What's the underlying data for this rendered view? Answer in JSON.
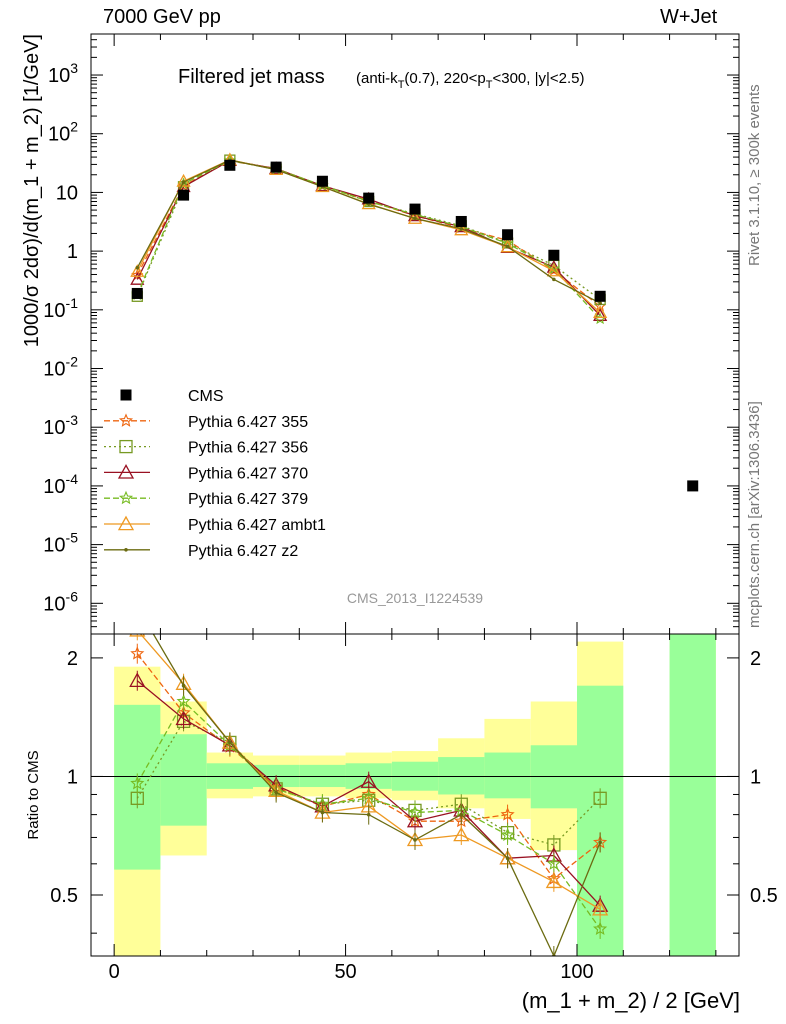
{
  "header": {
    "left": "7000 GeV pp",
    "right": "W+Jet"
  },
  "side_labels": {
    "rivet": "Rivet 3.1.10, ≥ 300k events",
    "mcplots": "mcplots.cern.ch [arXiv:1306.3436]"
  },
  "chart_data": {
    "type": "line",
    "title_main": "Filtered jet mass",
    "title_sub_parts": [
      "(anti-k",
      "T",
      "(0.7), 220<p",
      "T",
      "<300, |y|<2.5)"
    ],
    "watermark": "CMS_2013_I1224539",
    "xlabel": "(m_1 + m_2) / 2 [GeV]",
    "ylabel": "1000/σ 2dσ)/d(m_1 + m_2) [1/GeV]",
    "ratio_ylabel": "Ratio to CMS",
    "xlim": [
      -5,
      135
    ],
    "ylim": [
      3e-07,
      5000
    ],
    "yscale": "log",
    "ratio_ylim": [
      0.35,
      2.3
    ],
    "x_ticks": [
      "0",
      "50",
      "100"
    ],
    "y_ticks": [
      "10^-6",
      "10^-5",
      "10^-4",
      "10^-3",
      "10^-2",
      "10^-1",
      "1",
      "10",
      "10^2",
      "10^3"
    ],
    "ratio_ticks": [
      "0.5",
      "1",
      "2"
    ],
    "legend_placement": "lower-left",
    "data": {
      "name": "CMS",
      "x": [
        5,
        15,
        25,
        35,
        45,
        55,
        65,
        75,
        85,
        95,
        105,
        125
      ],
      "y": [
        0.19,
        9.0,
        29,
        27,
        15.5,
        8.0,
        5.2,
        3.2,
        1.9,
        0.85,
        0.17,
        0.0001
      ]
    },
    "bands": [
      {
        "x0": 0,
        "x1": 10,
        "inner": [
          0.58,
          1.52
        ],
        "outer": [
          0.3,
          1.9
        ]
      },
      {
        "x0": 10,
        "x1": 20,
        "inner": [
          0.75,
          1.28
        ],
        "outer": [
          0.63,
          1.55
        ]
      },
      {
        "x0": 20,
        "x1": 30,
        "inner": [
          0.93,
          1.08
        ],
        "outer": [
          0.88,
          1.15
        ]
      },
      {
        "x0": 30,
        "x1": 40,
        "inner": [
          0.94,
          1.07
        ],
        "outer": [
          0.89,
          1.13
        ]
      },
      {
        "x0": 40,
        "x1": 50,
        "inner": [
          0.94,
          1.07
        ],
        "outer": [
          0.89,
          1.13
        ]
      },
      {
        "x0": 50,
        "x1": 60,
        "inner": [
          0.93,
          1.08
        ],
        "outer": [
          0.88,
          1.15
        ]
      },
      {
        "x0": 60,
        "x1": 70,
        "inner": [
          0.92,
          1.09
        ],
        "outer": [
          0.87,
          1.16
        ]
      },
      {
        "x0": 70,
        "x1": 80,
        "inner": [
          0.9,
          1.12
        ],
        "outer": [
          0.83,
          1.25
        ]
      },
      {
        "x0": 80,
        "x1": 90,
        "inner": [
          0.88,
          1.15
        ],
        "outer": [
          0.78,
          1.4
        ]
      },
      {
        "x0": 90,
        "x1": 100,
        "inner": [
          0.83,
          1.2
        ],
        "outer": [
          0.65,
          1.55
        ]
      },
      {
        "x0": 100,
        "x1": 110,
        "inner": [
          0.25,
          1.7
        ],
        "outer": [
          0.25,
          2.2
        ]
      },
      {
        "x0": 120,
        "x1": 130,
        "inner": [
          0.25,
          3.0
        ],
        "outer": [
          0.25,
          3.0
        ]
      }
    ],
    "series": [
      {
        "name": "Pythia 6.427 355",
        "color": "#ee6611",
        "dash": "6,3",
        "marker": "star",
        "x": [
          5,
          15,
          25,
          35,
          45,
          55,
          65,
          75,
          85,
          95,
          105
        ],
        "y": [
          0.39,
          13.0,
          34.5,
          25.5,
          13.0,
          7.2,
          4.0,
          2.5,
          1.52,
          0.47,
          0.115
        ],
        "ratio": [
          2.05,
          1.45,
          1.19,
          0.94,
          0.84,
          0.9,
          0.77,
          0.77,
          0.8,
          0.55,
          0.68
        ]
      },
      {
        "name": "Pythia 6.427 356",
        "color": "#779922",
        "dash": "2,3",
        "marker": "square",
        "x": [
          5,
          15,
          25,
          35,
          45,
          55,
          65,
          75,
          85,
          95,
          105
        ],
        "y": [
          0.17,
          12.5,
          35.5,
          25.0,
          13.0,
          7.0,
          4.3,
          2.7,
          1.38,
          0.57,
          0.15
        ],
        "ratio": [
          0.88,
          1.38,
          1.22,
          0.93,
          0.85,
          0.87,
          0.82,
          0.85,
          0.72,
          0.67,
          0.88
        ]
      },
      {
        "name": "Pythia 6.427 370",
        "color": "#991122",
        "dash": "",
        "marker": "triangle",
        "x": [
          5,
          15,
          25,
          35,
          45,
          55,
          65,
          75,
          85,
          95,
          105
        ],
        "y": [
          0.33,
          12.5,
          35.0,
          25.5,
          13.0,
          7.7,
          4.0,
          2.6,
          1.15,
          0.53,
          0.08
        ],
        "ratio": [
          1.75,
          1.4,
          1.2,
          0.95,
          0.84,
          0.97,
          0.77,
          0.82,
          0.62,
          0.63,
          0.47
        ]
      },
      {
        "name": "Pythia 6.427 379",
        "color": "#77bb22",
        "dash": "6,3",
        "marker": "star",
        "x": [
          5,
          15,
          25,
          35,
          45,
          55,
          65,
          75,
          85,
          95,
          105
        ],
        "y": [
          0.18,
          14.0,
          35.0,
          25.0,
          13.2,
          7.0,
          4.2,
          2.6,
          1.35,
          0.5,
          0.07
        ],
        "ratio": [
          0.96,
          1.55,
          1.2,
          0.93,
          0.85,
          0.88,
          0.81,
          0.82,
          0.71,
          0.6,
          0.41
        ]
      },
      {
        "name": "Pythia 6.427 ambt1",
        "color": "#ee9922",
        "dash": "",
        "marker": "triangle",
        "x": [
          5,
          15,
          25,
          35,
          45,
          55,
          65,
          75,
          85,
          95,
          105
        ],
        "y": [
          0.45,
          15.5,
          36.0,
          24.5,
          12.5,
          6.4,
          3.6,
          2.3,
          1.18,
          0.46,
          0.09
        ],
        "ratio": [
          2.35,
          1.72,
          1.22,
          0.92,
          0.81,
          0.84,
          0.69,
          0.71,
          0.62,
          0.54,
          0.46
        ]
      },
      {
        "name": "Pythia 6.427 z2",
        "color": "#6b6b11",
        "dash": "",
        "marker": "dot",
        "x": [
          5,
          15,
          25,
          35,
          45,
          55,
          65,
          75,
          85,
          95,
          105
        ],
        "y": [
          0.52,
          15.0,
          35.5,
          24.5,
          12.5,
          6.3,
          3.6,
          2.4,
          1.2,
          0.33,
          0.13
        ],
        "ratio": [
          2.7,
          1.7,
          1.22,
          0.91,
          0.81,
          0.8,
          0.69,
          0.8,
          0.62,
          0.35,
          0.68
        ]
      }
    ]
  }
}
